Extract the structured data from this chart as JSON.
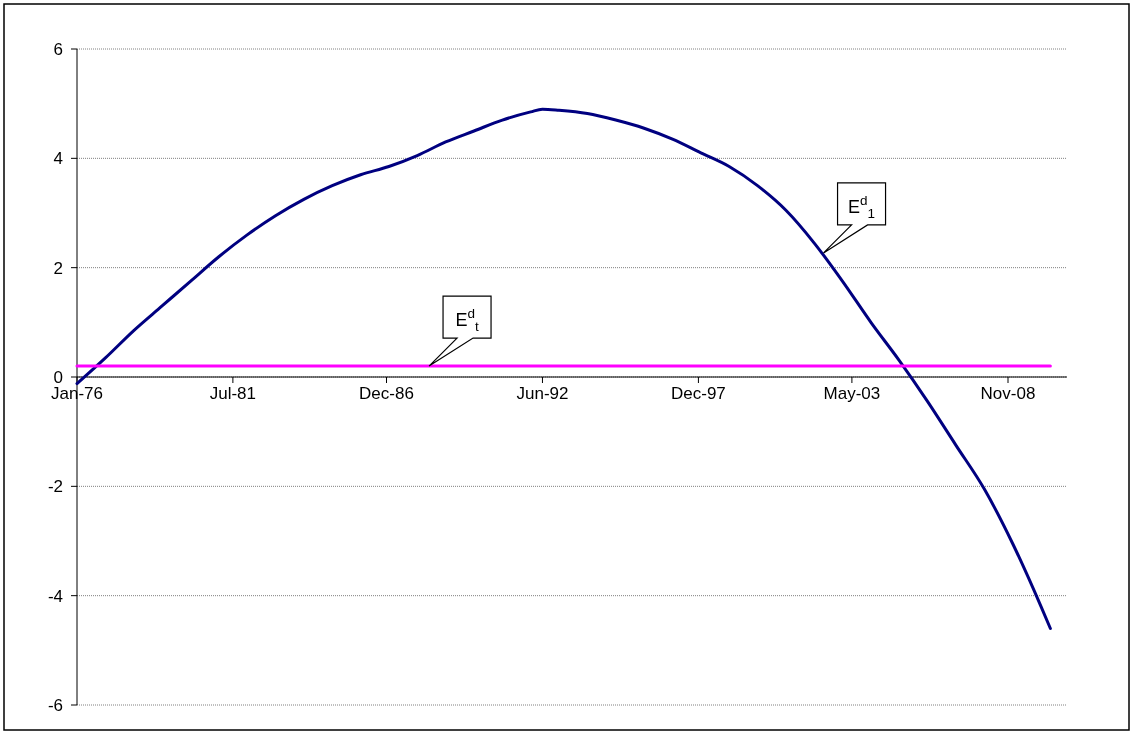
{
  "chart_data": {
    "type": "line",
    "xlim": [
      "1976-01",
      "2010-12"
    ],
    "xticks": [
      {
        "value": "1976-01",
        "label": "Jan-76"
      },
      {
        "value": "1981-07",
        "label": "Jul-81"
      },
      {
        "value": "1986-12",
        "label": "Dec-86"
      },
      {
        "value": "1992-06",
        "label": "Jun-92"
      },
      {
        "value": "1997-12",
        "label": "Dec-97"
      },
      {
        "value": "2003-05",
        "label": "May-03"
      },
      {
        "value": "2008-11",
        "label": "Nov-08"
      }
    ],
    "ylim": [
      -6,
      6
    ],
    "yticks": [
      -6,
      -4,
      -2,
      0,
      2,
      4,
      6
    ],
    "grid": "y",
    "marker": "none",
    "line_style": "solid",
    "series": [
      {
        "color": "#000080",
        "x": [
          "1976-01",
          "1977-01",
          "1978-01",
          "1979-01",
          "1980-01",
          "1981-01",
          "1982-01",
          "1983-01",
          "1984-01",
          "1985-01",
          "1986-01",
          "1987-01",
          "1988-01",
          "1989-01",
          "1990-01",
          "1991-01",
          "1992-01",
          "1992-06",
          "1993-01",
          "1994-01",
          "1995-01",
          "1996-01",
          "1997-01",
          "1998-01",
          "1999-01",
          "2000-01",
          "2001-01",
          "2002-01",
          "2003-01",
          "2004-01",
          "2005-01",
          "2006-01",
          "2007-01",
          "2008-01",
          "2009-01",
          "2010-01",
          "2010-05"
        ],
        "values": [
          -0.12,
          0.35,
          0.85,
          1.3,
          1.75,
          2.2,
          2.6,
          2.95,
          3.25,
          3.5,
          3.7,
          3.85,
          4.05,
          4.3,
          4.5,
          4.7,
          4.85,
          4.9,
          4.88,
          4.82,
          4.7,
          4.55,
          4.35,
          4.1,
          3.85,
          3.5,
          3.05,
          2.45,
          1.75,
          1.0,
          0.3,
          -0.45,
          -1.25,
          -2.05,
          -3.05,
          -4.2,
          -4.6
        ]
      },
      {
        "color": "#ff00ff",
        "x": [
          "1976-01",
          "2010-05"
        ],
        "values": [
          0.2,
          0.2
        ]
      }
    ],
    "annotations": [
      {
        "text": "E$^{d}$$_{t}$",
        "x": "1988-06",
        "y": 0.2
      },
      {
        "text": "E$^{d}$$_{1}$",
        "x": "2002-05",
        "y": 2.27
      }
    ]
  }
}
